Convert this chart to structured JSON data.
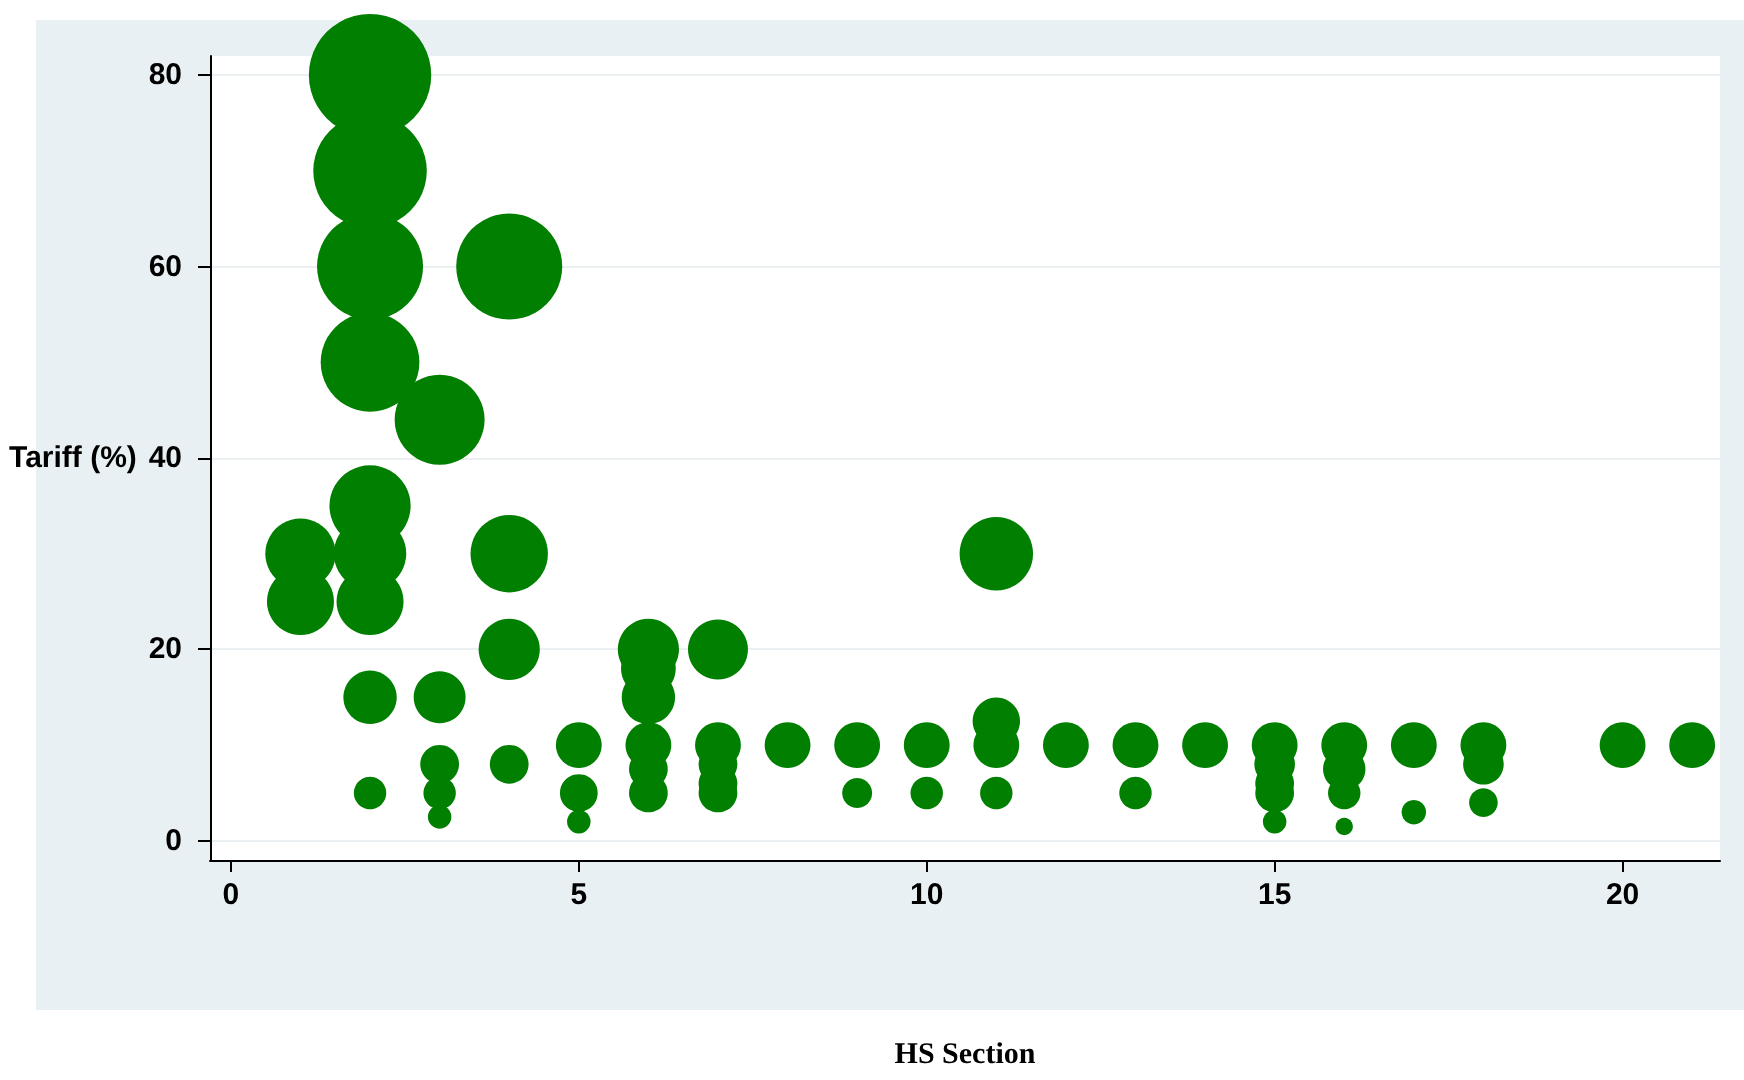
{
  "chart_data": {
    "type": "bubble",
    "xlabel": "HS Section",
    "ylabel": "Tariff (%)",
    "x": [
      1,
      1,
      2,
      2,
      2,
      2,
      2,
      2,
      2,
      2,
      2,
      3,
      3,
      3,
      3,
      3,
      4,
      4,
      4,
      4,
      5,
      5,
      5,
      6,
      6,
      6,
      6,
      6,
      6,
      7,
      7,
      7,
      7,
      7,
      8,
      9,
      9,
      10,
      10,
      11,
      11,
      11,
      11,
      12,
      13,
      13,
      14,
      15,
      15,
      15,
      15,
      15,
      16,
      16,
      16,
      16,
      17,
      17,
      18,
      18,
      18,
      20,
      21
    ],
    "values": [
      30,
      25,
      80,
      70,
      60,
      50,
      35,
      30,
      25,
      15,
      5,
      44,
      15,
      8,
      5,
      2.5,
      60,
      30,
      20,
      8,
      10,
      5,
      2,
      20,
      18,
      15,
      10,
      7.5,
      5,
      20,
      10,
      8,
      6,
      5,
      10,
      10,
      5,
      10,
      5,
      30,
      12.5,
      10,
      5,
      10,
      10,
      5,
      10,
      10,
      8,
      6,
      5,
      2,
      10,
      7.5,
      5,
      1.5,
      10,
      3,
      10,
      8,
      4,
      10,
      10
    ],
    "sizes": [
      0.33,
      0.3,
      1,
      0.86,
      0.75,
      0.65,
      0.44,
      0.35,
      0.3,
      0.19,
      0.07,
      0.54,
      0.18,
      0.1,
      0.07,
      0.037,
      0.75,
      0.4,
      0.25,
      0.1,
      0.14,
      0.095,
      0.037,
      0.25,
      0.2,
      0.19,
      0.14,
      0.1,
      0.1,
      0.24,
      0.14,
      0.1,
      0.1,
      0.1,
      0.14,
      0.14,
      0.06,
      0.14,
      0.07,
      0.36,
      0.15,
      0.14,
      0.07,
      0.14,
      0.14,
      0.07,
      0.14,
      0.14,
      0.11,
      0.1,
      0.1,
      0.037,
      0.14,
      0.12,
      0.07,
      0.02,
      0.14,
      0.04,
      0.14,
      0.11,
      0.055,
      0.14,
      0.14
    ],
    "color": "#007f00",
    "xlim": [
      -0.3,
      21.4
    ],
    "ylim": [
      -2,
      82
    ],
    "xticks": [
      0,
      5,
      10,
      15,
      20
    ],
    "yticks": [
      0,
      20,
      40,
      60,
      80
    ],
    "grid": "y"
  }
}
